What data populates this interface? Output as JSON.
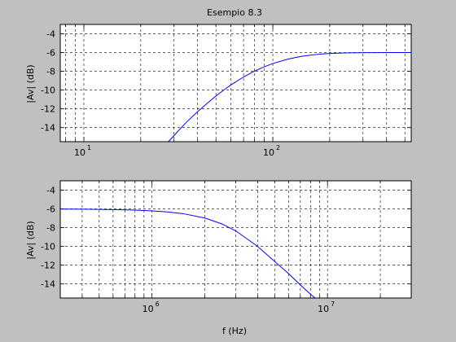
{
  "figure": {
    "background": "#c0c0c0",
    "title": "Esempio 8.3"
  },
  "chart_data": [
    {
      "type": "line",
      "title": "Esempio 8.3",
      "xlabel": "",
      "ylabel": "|Av| (dB)",
      "xscale": "log",
      "xlim": [
        7.5,
        540
      ],
      "ylim": [
        -15.5,
        -3
      ],
      "yticks": [
        -4,
        -6,
        -8,
        -10,
        -12,
        -14
      ],
      "xticks_major": [
        {
          "value": 10,
          "base": "10",
          "exp": "1"
        },
        {
          "value": 100,
          "base": "10",
          "exp": "2"
        }
      ],
      "grid": true,
      "line_color": "#0000ff",
      "series": [
        {
          "x": [
            28,
            30,
            33,
            35,
            40,
            45,
            50,
            55,
            60,
            70,
            80,
            90,
            100,
            120,
            140,
            160,
            180,
            200,
            240,
            280,
            320,
            360,
            400,
            450,
            500,
            540
          ],
          "y": [
            -15.5,
            -14.85,
            -13.93,
            -13.4,
            -12.3,
            -11.4,
            -10.63,
            -9.99,
            -9.45,
            -8.6,
            -7.98,
            -7.52,
            -7.17,
            -6.7,
            -6.42,
            -6.26,
            -6.16,
            -6.09,
            -6.04,
            -6.02,
            -6.01,
            -6.01,
            -6.0,
            -6.0,
            -6.0,
            -6.0
          ]
        }
      ]
    },
    {
      "type": "line",
      "title": "",
      "xlabel": "f (Hz)",
      "ylabel": "|Av| (dB)",
      "xscale": "log",
      "xlim": [
        300000,
        30000000
      ],
      "ylim": [
        -15.5,
        -3
      ],
      "yticks": [
        -4,
        -6,
        -8,
        -10,
        -12,
        -14
      ],
      "xticks_major": [
        {
          "value": 1000000,
          "base": "10",
          "exp": "6"
        },
        {
          "value": 10000000,
          "base": "10",
          "exp": "7"
        }
      ],
      "grid": true,
      "line_color": "#0000ff",
      "series": [
        {
          "x": [
            300000,
            400000,
            500000,
            600000,
            800000,
            1000000,
            1200000,
            1500000,
            2000000,
            2500000,
            3000000,
            4000000,
            5000000,
            6000000,
            7000000,
            8000000,
            8500000
          ],
          "y": [
            -6.02,
            -6.03,
            -6.05,
            -6.07,
            -6.12,
            -6.21,
            -6.31,
            -6.5,
            -6.97,
            -7.6,
            -8.34,
            -10.0,
            -11.6,
            -12.9,
            -14.1,
            -15.1,
            -15.5
          ]
        }
      ]
    }
  ]
}
